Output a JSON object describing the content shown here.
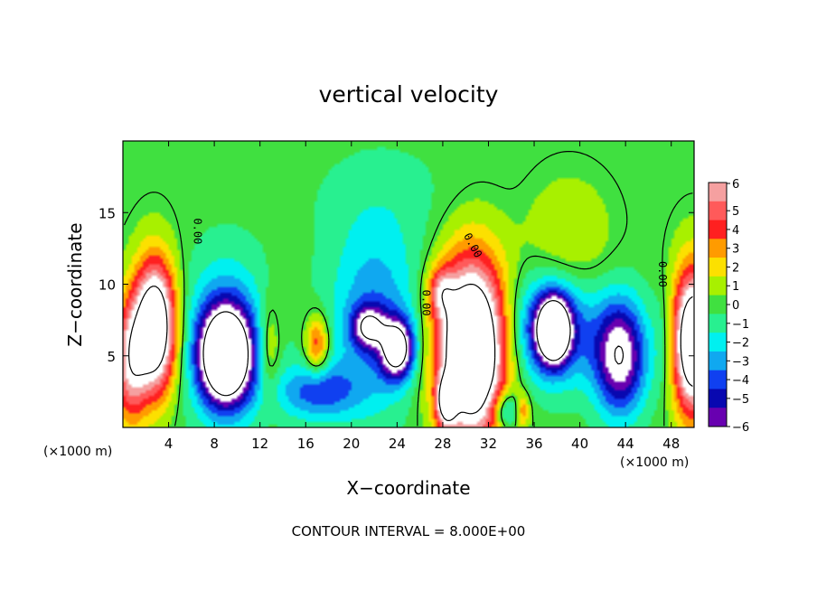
{
  "chart_data": {
    "type": "heatmap",
    "title": "vertical velocity",
    "xlabel": "X−coordinate",
    "ylabel": "Z−coordinate",
    "x_unit_left": "(×1000 m)",
    "x_unit_right": "(×1000 m)",
    "xlim": [
      0,
      50
    ],
    "ylim": [
      0,
      20
    ],
    "x_ticks": [
      {
        "value": 4,
        "label": "4"
      },
      {
        "value": 8,
        "label": "8"
      },
      {
        "value": 12,
        "label": "12"
      },
      {
        "value": 16,
        "label": "16"
      },
      {
        "value": 20,
        "label": "20"
      },
      {
        "value": 24,
        "label": "24"
      },
      {
        "value": 28,
        "label": "28"
      },
      {
        "value": 32,
        "label": "32"
      },
      {
        "value": 36,
        "label": "36"
      },
      {
        "value": 40,
        "label": "40"
      },
      {
        "value": 44,
        "label": "44"
      },
      {
        "value": 48,
        "label": "48"
      }
    ],
    "y_ticks": [
      {
        "value": 5,
        "label": "5"
      },
      {
        "value": 10,
        "label": "10"
      },
      {
        "value": 15,
        "label": "15"
      }
    ],
    "colorbar": {
      "levels": [
        {
          "value": 6,
          "label": "6",
          "color": "#f5a0a0"
        },
        {
          "value": 5,
          "label": "5",
          "color": "#ff5a5a"
        },
        {
          "value": 4,
          "label": "4",
          "color": "#ff2020"
        },
        {
          "value": 3,
          "label": "3",
          "color": "#ff9b00"
        },
        {
          "value": 2,
          "label": "2",
          "color": "#fce000"
        },
        {
          "value": 1,
          "label": "1",
          "color": "#a8f000"
        },
        {
          "value": 0,
          "label": "0",
          "color": "#40e040"
        },
        {
          "value": -1,
          "label": "−1",
          "color": "#28f090"
        },
        {
          "value": -2,
          "label": "−2",
          "color": "#00f0f0"
        },
        {
          "value": -3,
          "label": "−3",
          "color": "#10a8f0"
        },
        {
          "value": -4,
          "label": "−4",
          "color": "#1040f0"
        },
        {
          "value": -5,
          "label": "−5",
          "color": "#0808b0"
        },
        {
          "value": -6,
          "label": "−6",
          "color": "#6800b0"
        }
      ],
      "saturated_high_color": "#ffffff",
      "saturated_low_color": "#ffffff"
    },
    "cells": [
      {
        "x": 2.8,
        "z": 7.0,
        "sx": 1.3,
        "sz": 3.2,
        "w": 12
      },
      {
        "x": 0.6,
        "z": 4.5,
        "sx": 1.0,
        "sz": 3.0,
        "w": 6
      },
      {
        "x": 9.0,
        "z": 5.0,
        "sx": 1.5,
        "sz": 2.2,
        "w": -12
      },
      {
        "x": 9.0,
        "z": 6.0,
        "sx": 2.6,
        "sz": 4.0,
        "w": -4
      },
      {
        "x": 12.8,
        "z": 5.5,
        "sx": 0.7,
        "sz": 2.5,
        "w": 2.5
      },
      {
        "x": 17.0,
        "z": 5.8,
        "sx": 0.7,
        "sz": 1.4,
        "w": 4.5
      },
      {
        "x": 17.0,
        "z": 2.5,
        "sx": 2.5,
        "sz": 1.4,
        "w": -4
      },
      {
        "x": 22.0,
        "z": 7.5,
        "sx": 2.8,
        "sz": 4.5,
        "w": -3.5
      },
      {
        "x": 24.0,
        "z": 5.5,
        "sx": 1.0,
        "sz": 1.4,
        "w": -9
      },
      {
        "x": 21.5,
        "z": 7.0,
        "sx": 1.0,
        "sz": 1.0,
        "w": -6
      },
      {
        "x": 30.5,
        "z": 5.5,
        "sx": 2.1,
        "sz": 4.3,
        "w": 14
      },
      {
        "x": 28.3,
        "z": 1.8,
        "sx": 0.6,
        "sz": 1.2,
        "w": 7
      },
      {
        "x": 27.8,
        "z": 9.5,
        "sx": 0.8,
        "sz": 1.2,
        "w": 4
      },
      {
        "x": 33.5,
        "z": 1.2,
        "sx": 0.8,
        "sz": 1.0,
        "w": -4
      },
      {
        "x": 35.0,
        "z": 1.2,
        "sx": 0.4,
        "sz": 0.8,
        "w": 3
      },
      {
        "x": 37.5,
        "z": 6.8,
        "sx": 2.4,
        "sz": 2.6,
        "w": -6
      },
      {
        "x": 37.7,
        "z": 6.8,
        "sx": 0.9,
        "sz": 1.4,
        "w": -12
      },
      {
        "x": 43.5,
        "z": 5.0,
        "sx": 1.6,
        "sz": 2.8,
        "w": -8
      },
      {
        "x": 39.0,
        "z": 13.2,
        "sx": 2.5,
        "sz": 2.8,
        "w": 1.6
      },
      {
        "x": 23.0,
        "z": 16.0,
        "sx": 5.0,
        "sz": 3.0,
        "w": -0.8
      },
      {
        "x": 50.0,
        "z": 6.0,
        "sx": 1.4,
        "sz": 3.5,
        "w": 12
      },
      {
        "x": 47.5,
        "z": 6.0,
        "sx": 0.8,
        "sz": 3.0,
        "w": -1.8
      }
    ],
    "contour_labels": [
      {
        "text": "0.00",
        "x": 6.5,
        "z": 13.7,
        "rotate": 90
      },
      {
        "text": "0.00",
        "x": 30.6,
        "z": 12.7,
        "rotate": 62
      },
      {
        "text": "0.00",
        "x": 26.5,
        "z": 8.7,
        "rotate": 90
      },
      {
        "text": "0.00",
        "x": 47.2,
        "z": 10.7,
        "rotate": 90
      }
    ],
    "contour_interval": "CONTOUR INTERVAL =  8.000E+00"
  }
}
